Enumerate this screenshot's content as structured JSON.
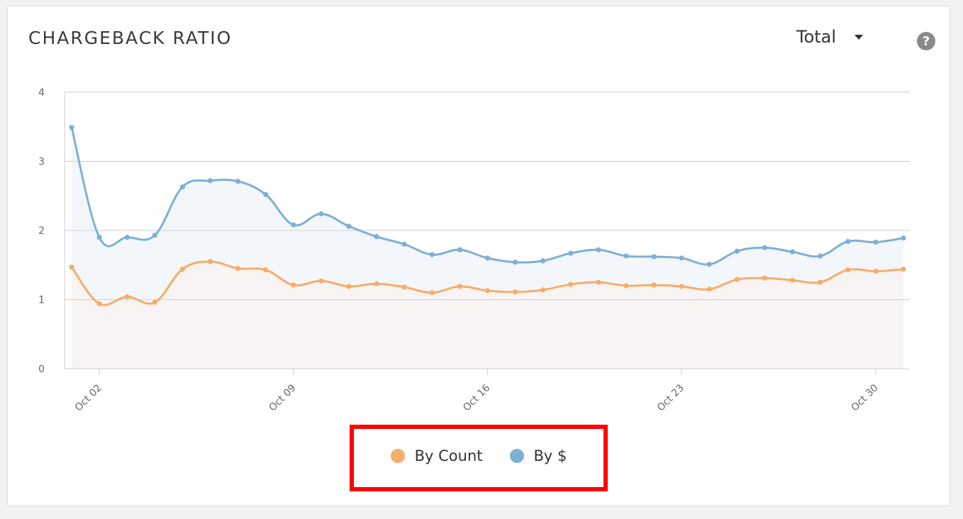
{
  "header": {
    "title": "CHARGEBACK RATIO",
    "dropdown_label": "Total",
    "help_icon_text": "?"
  },
  "colors": {
    "count": "#f5ad6b",
    "dollar": "#7fb0d4",
    "count_fill": "#f7f4f3",
    "dollar_fill": "#f3f7fc",
    "grid": "#cccccc",
    "highlight": "#ff0000"
  },
  "legend": {
    "items": [
      {
        "label": "By Count",
        "color": "#f5ad6b"
      },
      {
        "label": "By $",
        "color": "#7fb0d4"
      }
    ]
  },
  "chart_data": {
    "type": "area",
    "title": "CHARGEBACK RATIO",
    "xlabel": "",
    "ylabel": "",
    "ylim": [
      0,
      4
    ],
    "yticks": [
      0,
      1,
      2,
      3,
      4
    ],
    "x_start": "Oct 01",
    "x_tick_labels": [
      "Oct 02",
      "Oct 09",
      "Oct 16",
      "Oct 23",
      "Oct 30"
    ],
    "x": [
      "Oct 01",
      "Oct 02",
      "Oct 03",
      "Oct 04",
      "Oct 05",
      "Oct 06",
      "Oct 07",
      "Oct 08",
      "Oct 09",
      "Oct 10",
      "Oct 11",
      "Oct 12",
      "Oct 13",
      "Oct 14",
      "Oct 15",
      "Oct 16",
      "Oct 17",
      "Oct 18",
      "Oct 19",
      "Oct 20",
      "Oct 21",
      "Oct 22",
      "Oct 23",
      "Oct 24",
      "Oct 25",
      "Oct 26",
      "Oct 27",
      "Oct 28",
      "Oct 29",
      "Oct 30",
      "Oct 31"
    ],
    "grid": true,
    "legend_position": "bottom",
    "series": [
      {
        "name": "By Count",
        "values": [
          1.47,
          0.94,
          1.04,
          0.96,
          1.44,
          1.55,
          1.45,
          1.43,
          1.21,
          1.27,
          1.19,
          1.23,
          1.18,
          1.1,
          1.19,
          1.13,
          1.11,
          1.14,
          1.22,
          1.25,
          1.2,
          1.21,
          1.19,
          1.15,
          1.29,
          1.31,
          1.28,
          1.25,
          1.43,
          1.41,
          1.44
        ]
      },
      {
        "name": "By $",
        "values": [
          3.49,
          1.9,
          1.9,
          1.93,
          2.63,
          2.72,
          2.71,
          2.52,
          2.08,
          2.24,
          2.06,
          1.91,
          1.8,
          1.65,
          1.72,
          1.6,
          1.54,
          1.56,
          1.67,
          1.72,
          1.63,
          1.62,
          1.6,
          1.51,
          1.7,
          1.75,
          1.69,
          1.63,
          1.84,
          1.83,
          1.89
        ]
      }
    ]
  }
}
